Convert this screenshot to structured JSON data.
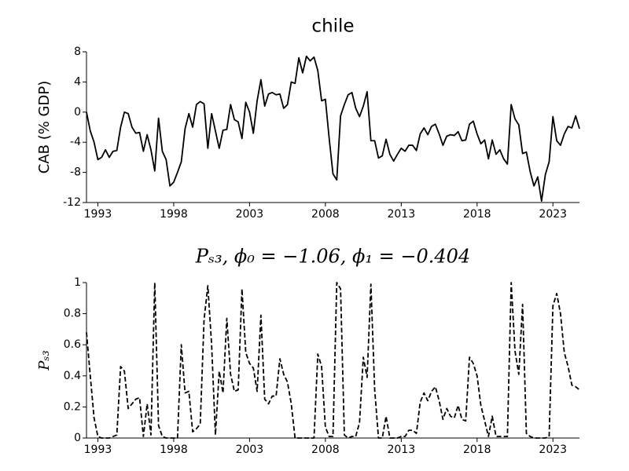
{
  "chart_data": [
    {
      "type": "line",
      "title": "chile",
      "ylabel": "CAB (% GDP)",
      "color": "#000000",
      "linestyle": "solid",
      "xlim": [
        1992.25,
        2024.75
      ],
      "xticks": [
        1993,
        1998,
        2003,
        2008,
        2013,
        2018,
        2023
      ],
      "ylim": [
        -12,
        8
      ],
      "yticks": [
        8,
        4,
        0,
        -4,
        -8,
        -12
      ],
      "x": [
        1992.25,
        1992.5,
        1992.75,
        1993,
        1993.25,
        1993.5,
        1993.75,
        1994,
        1994.25,
        1994.5,
        1994.75,
        1995,
        1995.25,
        1995.5,
        1995.75,
        1996,
        1996.25,
        1996.5,
        1996.75,
        1997,
        1997.25,
        1997.5,
        1997.75,
        1998,
        1998.25,
        1998.5,
        1998.75,
        1999,
        1999.25,
        1999.5,
        1999.75,
        2000,
        2000.25,
        2000.5,
        2000.75,
        2001,
        2001.25,
        2001.5,
        2001.75,
        2002,
        2002.25,
        2002.5,
        2002.75,
        2003,
        2003.25,
        2003.5,
        2003.75,
        2004,
        2004.25,
        2004.5,
        2004.75,
        2005,
        2005.25,
        2005.5,
        2005.75,
        2006,
        2006.25,
        2006.5,
        2006.75,
        2007,
        2007.25,
        2007.5,
        2007.75,
        2008,
        2008.25,
        2008.5,
        2008.75,
        2009,
        2009.25,
        2009.5,
        2009.75,
        2010,
        2010.25,
        2010.5,
        2010.75,
        2011,
        2011.25,
        2011.5,
        2011.75,
        2012,
        2012.25,
        2012.5,
        2012.75,
        2013,
        2013.25,
        2013.5,
        2013.75,
        2014,
        2014.25,
        2014.5,
        2014.75,
        2015,
        2015.25,
        2015.5,
        2015.75,
        2016,
        2016.25,
        2016.5,
        2016.75,
        2017,
        2017.25,
        2017.5,
        2017.75,
        2018,
        2018.25,
        2018.5,
        2018.75,
        2019,
        2019.25,
        2019.5,
        2019.75,
        2020,
        2020.25,
        2020.5,
        2020.75,
        2021,
        2021.25,
        2021.5,
        2021.75,
        2022,
        2022.25,
        2022.5,
        2022.75,
        2023,
        2023.25,
        2023.5,
        2023.75,
        2024,
        2024.25,
        2024.5,
        2024.75
      ],
      "values": [
        0,
        -2.5,
        -4,
        -6.3,
        -6,
        -5,
        -6,
        -5.2,
        -5.1,
        -2,
        0,
        -0.2,
        -2,
        -2.8,
        -2.7,
        -5.2,
        -3,
        -5,
        -7.8,
        -0.8,
        -5.2,
        -6.3,
        -9.8,
        -9.3,
        -8,
        -6.6,
        -2.2,
        -0.2,
        -2,
        1,
        1.4,
        1.1,
        -4.8,
        -0.2,
        -2.5,
        -4.8,
        -2.4,
        -2.3,
        1,
        -1,
        -1.3,
        -3.5,
        1.3,
        0,
        -2.8,
        1.5,
        4.3,
        0.8,
        2.4,
        2.6,
        2.3,
        2.4,
        0.5,
        1,
        4,
        3.8,
        7.2,
        5.2,
        7.4,
        6.8,
        7.3,
        5.5,
        1.5,
        1.7,
        -3.5,
        -8.2,
        -9,
        -0.5,
        1,
        2.3,
        2.6,
        0.5,
        -0.6,
        0.8,
        2.7,
        -3.8,
        -3.8,
        -6.1,
        -5.8,
        -3.6,
        -5.6,
        -6.5,
        -5.6,
        -4.8,
        -5.2,
        -4.4,
        -4.4,
        -5.1,
        -2.9,
        -2.1,
        -3,
        -1.9,
        -1.6,
        -2.9,
        -4.4,
        -3.2,
        -3,
        -3.1,
        -2.6,
        -3.8,
        -3.7,
        -1.6,
        -1.2,
        -2.9,
        -4.2,
        -3.7,
        -6.2,
        -3.7,
        -5.6,
        -5,
        -6.2,
        -6.9,
        1,
        -0.9,
        -1.7,
        -5.5,
        -5.3,
        -7.9,
        -9.8,
        -8.6,
        -11.8,
        -8.3,
        -6.6,
        -0.6,
        -3.8,
        -4.4,
        -2.9,
        -1.9,
        -2.1,
        -0.5,
        -2.2
      ]
    },
    {
      "type": "line",
      "title": "Pₛ₃, ϕ₀ = −1.06, ϕ₁ = −0.404",
      "ylabel": "Pₛ₃",
      "color": "#000000",
      "linestyle": "dashed",
      "xlim": [
        1992.25,
        2024.75
      ],
      "xticks": [
        1993,
        1998,
        2003,
        2008,
        2013,
        2018,
        2023
      ],
      "ylim": [
        0,
        1
      ],
      "yticks": [
        0,
        0.2,
        0.4,
        0.6,
        0.8,
        1
      ],
      "x": [
        1992.25,
        1992.5,
        1992.75,
        1993,
        1993.25,
        1993.5,
        1993.75,
        1994,
        1994.25,
        1994.5,
        1994.75,
        1995,
        1995.25,
        1995.5,
        1995.75,
        1996,
        1996.25,
        1996.5,
        1996.75,
        1997,
        1997.25,
        1997.5,
        1997.75,
        1998,
        1998.25,
        1998.5,
        1998.75,
        1999,
        1999.25,
        1999.5,
        1999.75,
        2000,
        2000.25,
        2000.5,
        2000.75,
        2001,
        2001.25,
        2001.5,
        2001.75,
        2002,
        2002.25,
        2002.5,
        2002.75,
        2003,
        2003.25,
        2003.5,
        2003.75,
        2004,
        2004.25,
        2004.5,
        2004.75,
        2005,
        2005.25,
        2005.5,
        2005.75,
        2006,
        2006.25,
        2006.5,
        2006.75,
        2007,
        2007.25,
        2007.5,
        2007.75,
        2008,
        2008.25,
        2008.5,
        2008.75,
        2009,
        2009.25,
        2009.5,
        2009.75,
        2010,
        2010.25,
        2010.5,
        2010.75,
        2011,
        2011.25,
        2011.5,
        2011.75,
        2012,
        2012.25,
        2012.5,
        2012.75,
        2013,
        2013.25,
        2013.5,
        2013.75,
        2014,
        2014.25,
        2014.5,
        2014.75,
        2015,
        2015.25,
        2015.5,
        2015.75,
        2016,
        2016.25,
        2016.5,
        2016.75,
        2017,
        2017.25,
        2017.5,
        2017.75,
        2018,
        2018.25,
        2018.5,
        2018.75,
        2019,
        2019.25,
        2019.5,
        2019.75,
        2020,
        2020.25,
        2020.5,
        2020.75,
        2021,
        2021.25,
        2021.5,
        2021.75,
        2022,
        2022.25,
        2022.5,
        2022.75,
        2023,
        2023.25,
        2023.5,
        2023.75,
        2024,
        2024.25,
        2024.5,
        2024.75
      ],
      "values": [
        0.68,
        0.4,
        0.13,
        0.01,
        0,
        0,
        0,
        0.01,
        0.02,
        0.46,
        0.43,
        0.19,
        0.22,
        0.25,
        0.26,
        0.01,
        0.22,
        0.02,
        1,
        0.08,
        0.01,
        0,
        0,
        0,
        0,
        0.6,
        0.29,
        0.3,
        0.04,
        0.06,
        0.09,
        0.76,
        0.98,
        0.6,
        0.02,
        0.43,
        0.29,
        0.77,
        0.41,
        0.3,
        0.31,
        0.96,
        0.55,
        0.48,
        0.45,
        0.3,
        0.79,
        0.25,
        0.22,
        0.27,
        0.27,
        0.51,
        0.41,
        0.36,
        0.22,
        0,
        0,
        0,
        0,
        0,
        0,
        0.54,
        0.46,
        0.07,
        0.01,
        0.01,
        1,
        0.96,
        0.02,
        0,
        0.01,
        0.01,
        0.1,
        0.52,
        0.39,
        0.99,
        0.31,
        0,
        0,
        0.14,
        0,
        0,
        0,
        0.01,
        0.01,
        0.05,
        0.05,
        0.03,
        0.23,
        0.29,
        0.24,
        0.3,
        0.33,
        0.24,
        0.12,
        0.19,
        0.14,
        0.13,
        0.21,
        0.12,
        0.11,
        0.52,
        0.48,
        0.4,
        0.21,
        0.11,
        0.01,
        0.14,
        0.01,
        0.01,
        0.01,
        0.01,
        1,
        0.56,
        0.41,
        0.86,
        0.03,
        0.01,
        0,
        0,
        0,
        0,
        0.01,
        0.85,
        0.93,
        0.8,
        0.55,
        0.46,
        0.34,
        0.33,
        0.31
      ]
    }
  ]
}
